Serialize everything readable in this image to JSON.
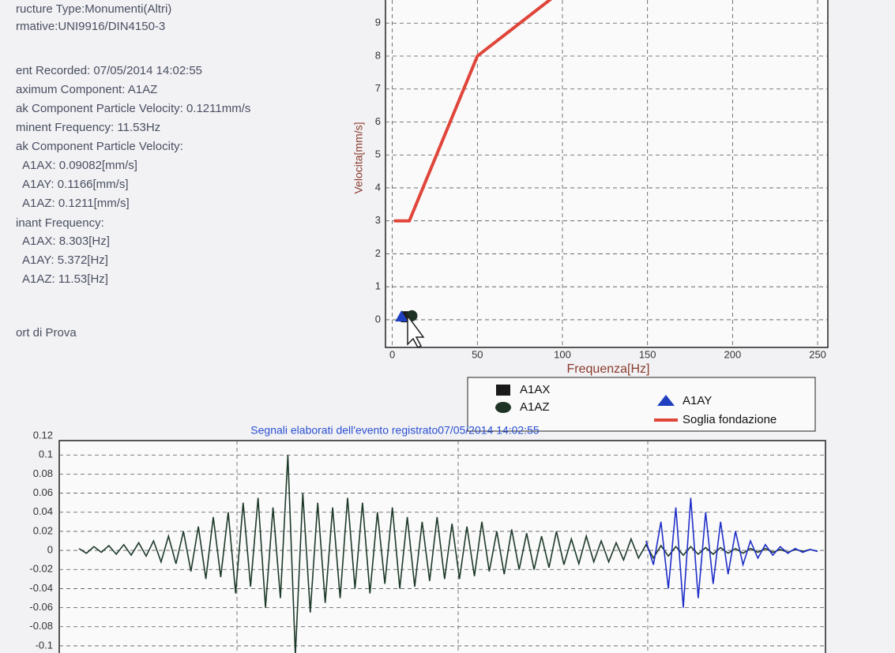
{
  "info": {
    "lines": [
      "ructure Type:Monumenti(Altri)",
      "rmative:UNI9916/DIN4150-3",
      "ent Recorded:  07/05/2014 14:02:55",
      "aximum Component:  A1AZ",
      "ak Component Particle Velocity:  0.1211mm/s",
      "minent Frequency:  11.53Hz",
      "ak Component Particle Velocity:",
      "A1AX:  0.09082[mm/s]",
      "A1AY:  0.1166[mm/s]",
      "A1AZ:  0.1211[mm/s]",
      "inant Frequency:",
      "A1AX:  8.303[Hz]",
      "A1AY:  5.372[Hz]",
      "A1AZ:  11.53[Hz]",
      "ort di Prova"
    ]
  },
  "chart_data": [
    {
      "type": "scatter",
      "x_label": "Frequenza[Hz]",
      "y_label": "Velocita[mm/s]",
      "xlim": [
        -4,
        256
      ],
      "ylim": [
        -0.6,
        9.7
      ],
      "xticks": [
        0,
        50,
        100,
        150,
        200,
        250
      ],
      "yticks": [
        0,
        1,
        2,
        3,
        4,
        5,
        6,
        7,
        8,
        9
      ],
      "grid": true,
      "series": [
        {
          "name": "A1AX",
          "color": "#1a1a1a",
          "marker": "square",
          "x": [
            8.303
          ],
          "values": [
            0.09082
          ]
        },
        {
          "name": "A1AY",
          "color": "#1f3fc0",
          "marker": "triangle",
          "x": [
            5.372
          ],
          "values": [
            0.1166
          ]
        },
        {
          "name": "A1AZ",
          "color": "#1e3326",
          "marker": "circle",
          "x": [
            11.53
          ],
          "values": [
            0.1211
          ]
        },
        {
          "name": "Soglia fondazione",
          "color": "#e0453a",
          "marker": "line",
          "x": [
            1,
            10,
            50,
            100
          ],
          "values": [
            3,
            3,
            8,
            10
          ]
        }
      ]
    },
    {
      "type": "line",
      "title": "Segnali elaborati dell'evento registrato07/05/2014 14:02:55",
      "ylim": [
        -0.105,
        0.125
      ],
      "yticks": [
        0.12,
        0.1,
        0.08,
        0.06,
        0.04,
        0.02,
        0,
        -0.02,
        -0.04,
        -0.06,
        -0.08,
        -0.1
      ],
      "grid": true,
      "series": [
        {
          "color": "#1e3a2a",
          "values": [
            0.002,
            -0.003,
            0.004,
            -0.002,
            0.005,
            -0.004,
            0.006,
            -0.005,
            0.008,
            -0.006,
            0.01,
            -0.012,
            0.015,
            -0.014,
            0.02,
            -0.022,
            0.025,
            -0.03,
            0.035,
            -0.028,
            0.04,
            -0.045,
            0.05,
            -0.038,
            0.055,
            -0.06,
            0.045,
            -0.05,
            0.1,
            -0.11,
            0.06,
            -0.065,
            0.05,
            -0.055,
            0.045,
            -0.05,
            0.055,
            -0.04,
            0.05,
            -0.045,
            0.04,
            -0.035,
            0.045,
            -0.04,
            0.035,
            -0.038,
            0.03,
            -0.032,
            0.035,
            -0.03,
            0.028,
            -0.03,
            0.025,
            -0.027,
            0.03,
            -0.022,
            0.02,
            -0.025,
            0.022,
            -0.02,
            0.018,
            -0.02,
            0.015,
            -0.018,
            0.02,
            -0.015,
            0.012,
            -0.014,
            0.015,
            -0.012,
            0.01,
            -0.012,
            0.008,
            -0.01,
            0.012,
            -0.008,
            0.006,
            -0.008,
            0.005,
            -0.006,
            0.004,
            -0.005,
            0.004,
            -0.004,
            0.003,
            -0.004,
            0.003,
            -0.003,
            0.002,
            -0.003,
            0.002,
            -0.002,
            0.002,
            -0.002,
            0.001,
            -0.002,
            0.001,
            -0.001,
            0.001,
            -0.001
          ]
        },
        {
          "color": "#1f2fc8",
          "values": [
            null,
            null,
            null,
            null,
            null,
            null,
            null,
            null,
            null,
            null,
            null,
            null,
            null,
            null,
            null,
            null,
            null,
            null,
            null,
            null,
            null,
            null,
            null,
            null,
            null,
            null,
            null,
            null,
            null,
            null,
            null,
            null,
            null,
            null,
            null,
            null,
            null,
            null,
            null,
            null,
            null,
            null,
            null,
            null,
            null,
            null,
            null,
            null,
            null,
            null,
            null,
            null,
            null,
            null,
            null,
            null,
            null,
            null,
            null,
            null,
            null,
            null,
            null,
            null,
            null,
            null,
            null,
            null,
            null,
            null,
            null,
            null,
            null,
            null,
            null,
            null,
            0.01,
            -0.015,
            0.03,
            -0.04,
            0.045,
            -0.06,
            0.055,
            -0.05,
            0.04,
            -0.035,
            0.03,
            -0.025,
            0.02,
            -0.015,
            0.01,
            -0.008,
            0.006,
            -0.005,
            0.004,
            -0.003,
            0.002,
            -0.002,
            0.001,
            -0.001
          ]
        }
      ]
    }
  ]
}
